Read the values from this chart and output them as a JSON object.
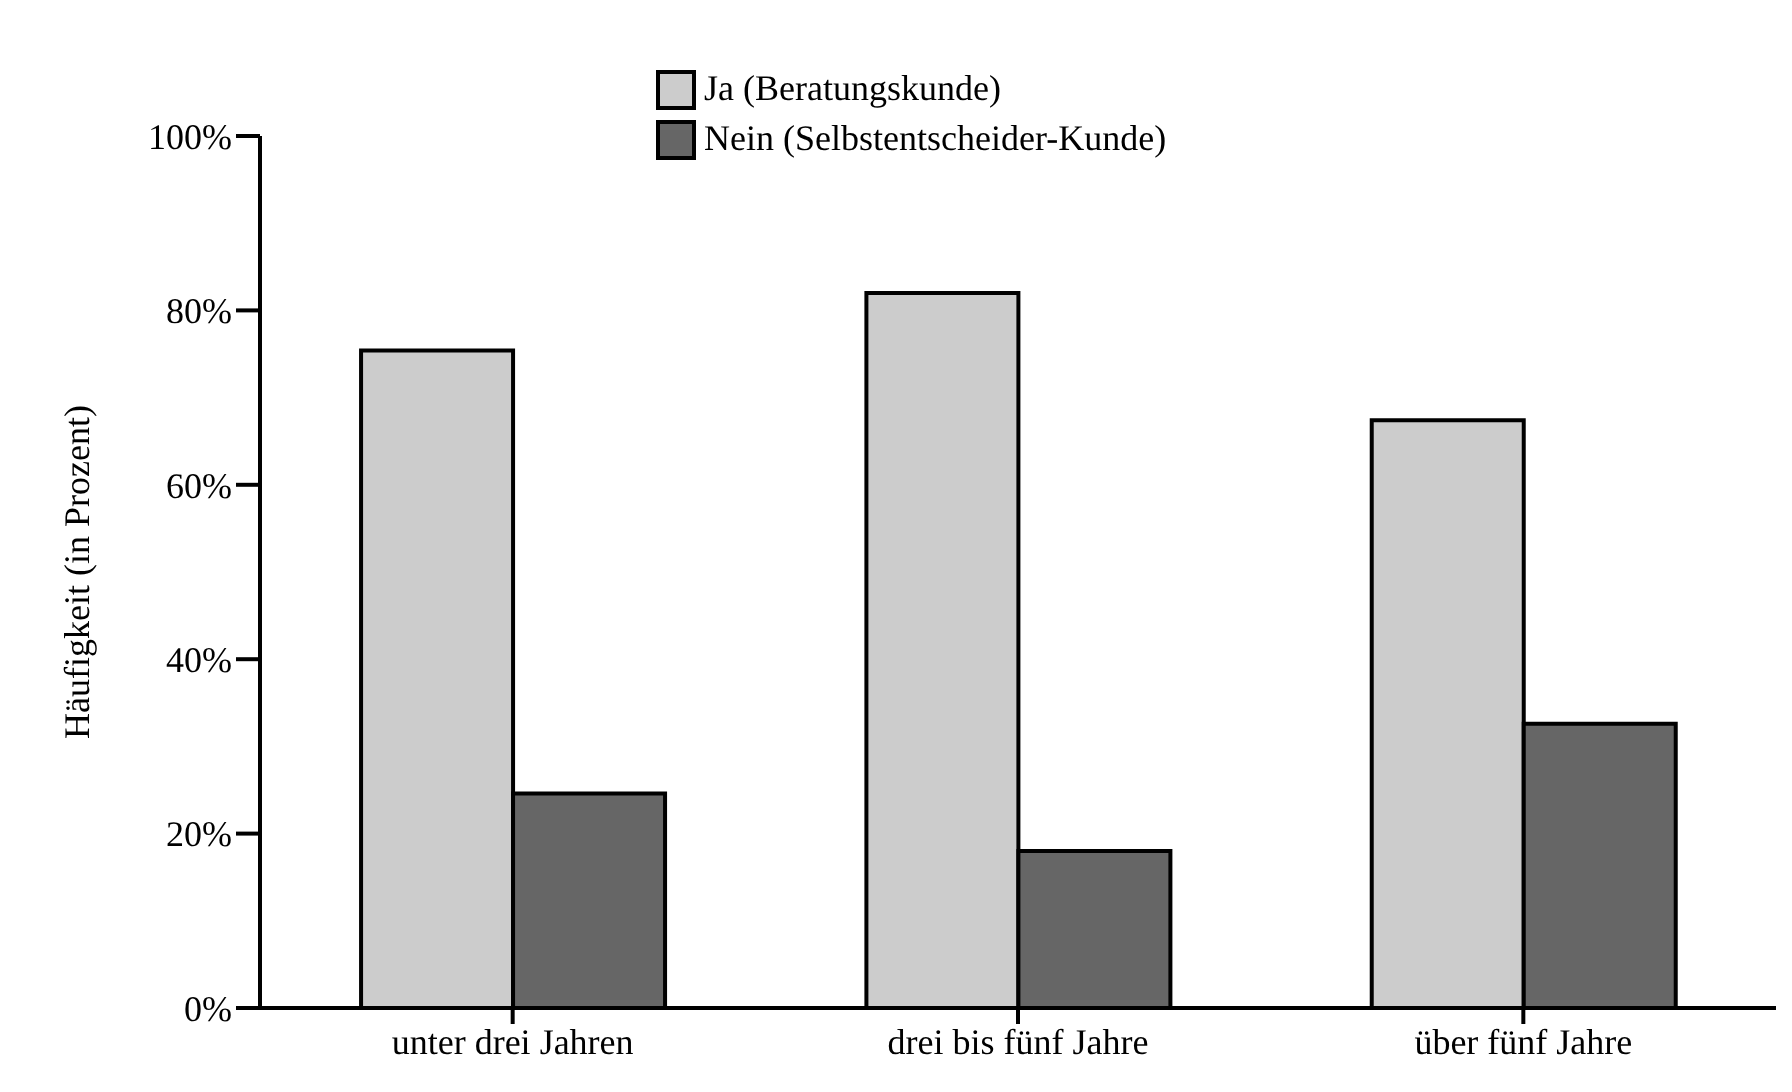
{
  "chart_data": {
    "type": "bar",
    "ylabel": "Häufigkeit (in Prozent)",
    "categories": [
      "unter drei Jahren",
      "drei bis fünf Jahre",
      "über fünf Jahre"
    ],
    "series": [
      {
        "name": "Ja (Beratungskunde)",
        "color": "#cccccc",
        "values": [
          75.4,
          82,
          67.4
        ]
      },
      {
        "name": "Nein (Selbstentscheider-Kunde)",
        "color": "#666666",
        "values": [
          24.6,
          18,
          32.6
        ]
      }
    ],
    "ylim": [
      0,
      100
    ],
    "yticks": [
      {
        "value": 0,
        "label": "0%"
      },
      {
        "value": 20,
        "label": "20%"
      },
      {
        "value": 40,
        "label": "40%"
      },
      {
        "value": 60,
        "label": "60%"
      },
      {
        "value": 80,
        "label": "80%"
      },
      {
        "value": 100,
        "label": "100%"
      }
    ],
    "grid": false,
    "legend": "top"
  }
}
